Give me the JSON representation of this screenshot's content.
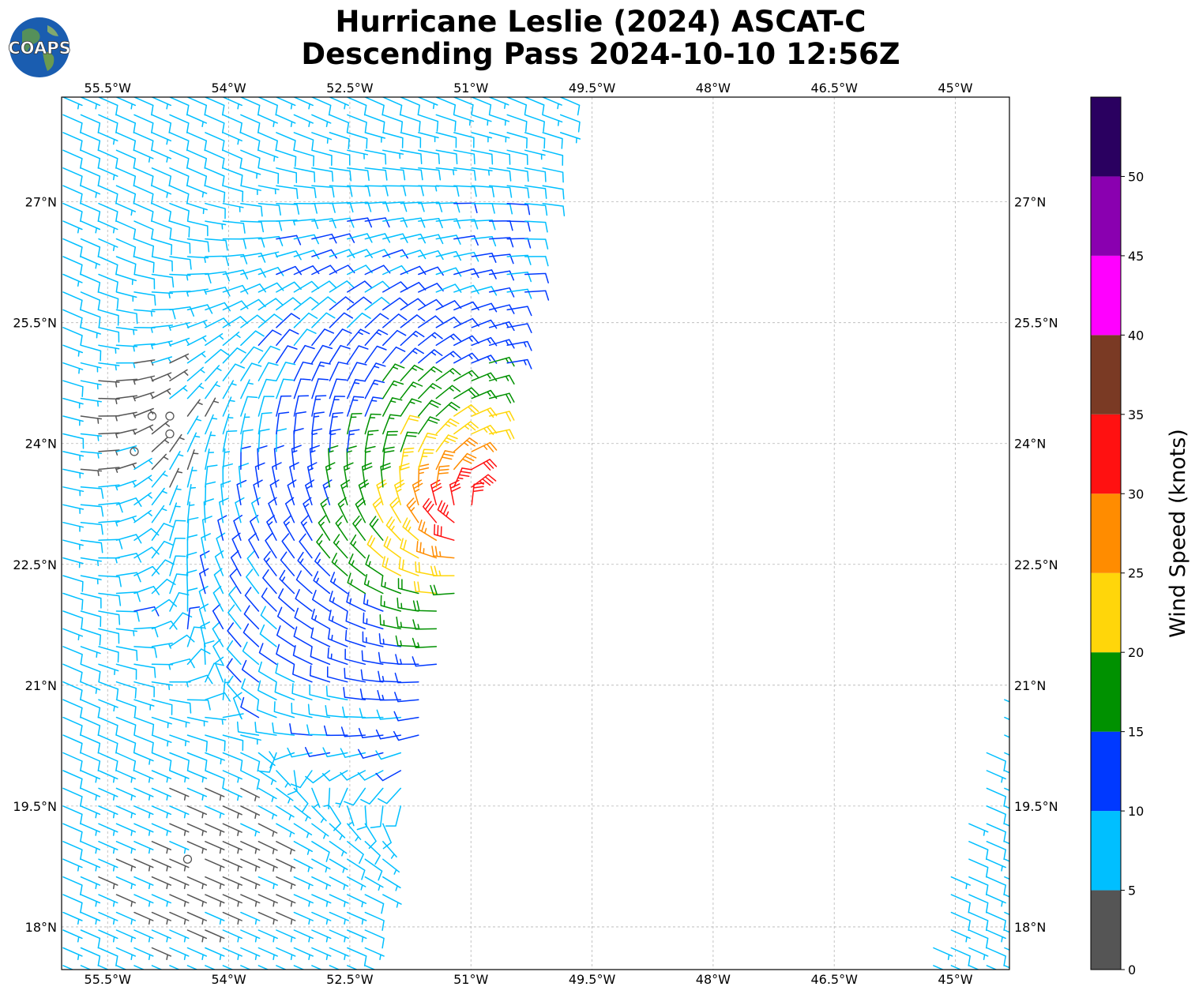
{
  "header": {
    "title_line1": "Hurricane Leslie (2024) ASCAT-C",
    "title_line2": "Descending Pass 2024-10-10 12:56Z",
    "logo_text": "COAPS"
  },
  "chart_data": {
    "type": "wind-barb-map",
    "x_axis": {
      "label": "",
      "range": [
        -56.07,
        -44.33
      ],
      "ticks": [
        -55.5,
        -54.0,
        -52.5,
        -51.0,
        -49.5,
        -48.0,
        -46.5,
        -45.0
      ],
      "tick_labels": [
        "55.5°W",
        "54°W",
        "52.5°W",
        "51°W",
        "49.5°W",
        "48°W",
        "46.5°W",
        "45°W"
      ]
    },
    "y_axis": {
      "label": "",
      "range": [
        17.47,
        28.3
      ],
      "ticks": [
        18.0,
        19.5,
        21.0,
        22.5,
        24.0,
        25.5,
        27.0
      ],
      "tick_labels": [
        "18°N",
        "19.5°N",
        "21°N",
        "22.5°N",
        "24°N",
        "25.5°N",
        "27°N"
      ]
    },
    "grid": true,
    "colorbar": {
      "label": "Wind Speed (knots)",
      "range": [
        0,
        55
      ],
      "boundaries": [
        0,
        5,
        10,
        15,
        20,
        25,
        30,
        35,
        40,
        45,
        50,
        55
      ],
      "colors": [
        "#555555",
        "#00bfff",
        "#0039ff",
        "#009100",
        "#ffd60a",
        "#ff8c00",
        "#ff1111",
        "#7a3a24",
        "#ff00ff",
        "#8a00b0",
        "#2a0060"
      ],
      "tick_values": [
        0,
        5,
        10,
        15,
        20,
        25,
        30,
        35,
        40,
        45,
        50
      ],
      "tick_labels": [
        "0",
        "5",
        "10",
        "15",
        "20",
        "25",
        "30",
        "35",
        "40",
        "45",
        "50"
      ]
    },
    "storm_center": {
      "lon": -50.9,
      "lat": 23.2
    },
    "series": [
      {
        "swath_bounds": {
          "west_lon": -56.07,
          "east_lon_top": -49.75,
          "east_lat_top": 28.3,
          "east_lon_bottom": -52.3,
          "east_lat_bottom": 17.47
        },
        "grid_spacing_deg": 0.22
      },
      {
        "swath_bounds": {
          "west_lon_top": -44.33,
          "west_lat_top": 21.2,
          "west_lon_bottom": -45.4,
          "west_lat_bottom": 17.47,
          "east_lon": -44.33
        },
        "grid_spacing_deg": 0.22
      }
    ]
  }
}
